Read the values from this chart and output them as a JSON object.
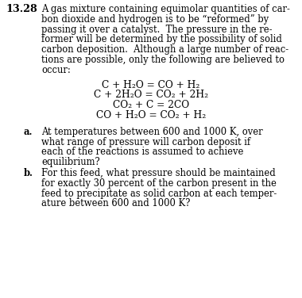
{
  "background_color": "#ffffff",
  "problem_number": "13.28",
  "text_color": "#000000",
  "paragraph_lines": [
    "A gas mixture containing equimolar quantities of car-",
    "bon dioxide and hydrogen is to be “reformed” by",
    "passing it over a catalyst.  The pressure in the re-",
    "former will be determined by the possibility of solid",
    "carbon deposition.  Although a large number of reac-",
    "tions are possible, only the following are believed to",
    "occur:"
  ],
  "equations": [
    "C + H₂O = CO + H₂",
    "C + 2H₂O = CO₂ + 2H₂",
    "CO₂ + C = 2CO",
    "CO + H₂O = CO₂ + H₂"
  ],
  "part_a_label": "a.",
  "part_a_lines": [
    "At temperatures between 600 and 1000 K, over",
    "what range of pressure will carbon deposit if",
    "each of the reactions is assumed to achieve",
    "equilibrium?"
  ],
  "part_b_label": "b.",
  "part_b_lines": [
    "For this feed, what pressure should be maintained",
    "for exactly 30 percent of the carbon present in the",
    "feed to precipitate as solid carbon at each temper-",
    "ature between 600 and 1000 K?"
  ]
}
